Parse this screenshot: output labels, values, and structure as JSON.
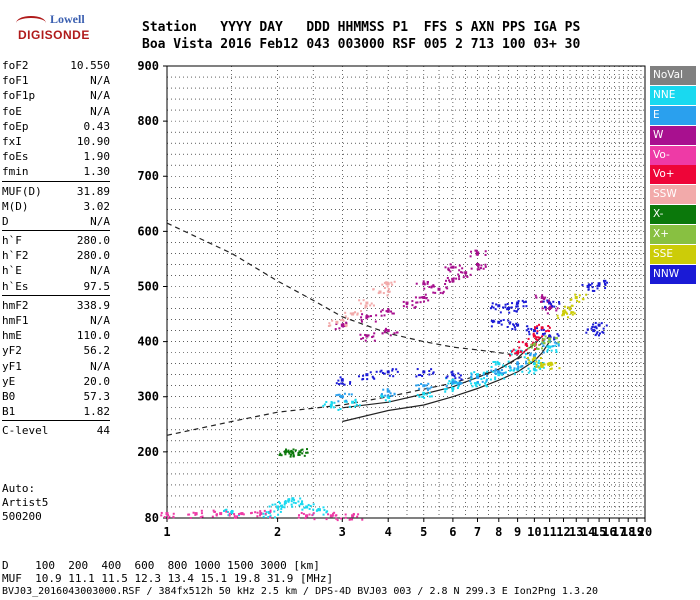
{
  "logo": {
    "line1": "Lowell",
    "line2": "DIGISONDE"
  },
  "header": {
    "labels": "Station   YYYY DAY   DDD HHMMSS P1  FFS S AXN PPS IGA PS",
    "values": "Boa Vista 2016 Feb12 043 003000 RSF 005 2 713 100 03+ 30"
  },
  "params": {
    "group1": [
      {
        "name": "foF2",
        "value": "10.550"
      },
      {
        "name": "foF1",
        "value": "N/A"
      },
      {
        "name": "foF1p",
        "value": "N/A"
      },
      {
        "name": "foE",
        "value": "N/A"
      },
      {
        "name": "foEp",
        "value": "0.43"
      },
      {
        "name": "fxI",
        "value": "10.90"
      },
      {
        "name": "foEs",
        "value": "1.90"
      },
      {
        "name": "fmin",
        "value": "1.30"
      }
    ],
    "group2": [
      {
        "name": "MUF(D)",
        "value": "31.89"
      },
      {
        "name": "M(D)",
        "value": "3.02"
      },
      {
        "name": "D",
        "value": "N/A"
      }
    ],
    "group3": [
      {
        "name": "h`F",
        "value": "280.0"
      },
      {
        "name": "h`F2",
        "value": "280.0"
      },
      {
        "name": "h`E",
        "value": "N/A"
      },
      {
        "name": "h`Es",
        "value": "97.5"
      }
    ],
    "group4": [
      {
        "name": "hmF2",
        "value": "338.9"
      },
      {
        "name": "hmF1",
        "value": "N/A"
      },
      {
        "name": "hmE",
        "value": "110.0"
      },
      {
        "name": "yF2",
        "value": "56.2"
      },
      {
        "name": "yF1",
        "value": "N/A"
      },
      {
        "name": "yE",
        "value": "20.0"
      },
      {
        "name": "B0",
        "value": "57.3"
      },
      {
        "name": "B1",
        "value": "1.82"
      }
    ],
    "group5": [
      {
        "name": "C-level",
        "value": "44"
      }
    ]
  },
  "auto": {
    "line1": "Auto:",
    "line2": "Artist5",
    "line3": "500200"
  },
  "footer": {
    "d_row": "D    100  200  400  600  800 1000 1500 3000 [km]",
    "muf_row": "MUF  10.9 11.1 11.5 12.3 13.4 15.1 19.8 31.9 [MHz]",
    "file_row": "BVJ03_2016043003000.RSF / 384fx512h 50 kHz 2.5 km / DPS-4D BVJ03 003 / 2.8 N 299.3 E Ion2Png 1.3.20"
  },
  "legend": [
    {
      "label": "NoVal",
      "color": "#808080"
    },
    {
      "label": "NNE",
      "color": "#19d9f0"
    },
    {
      "label": "E",
      "color": "#2aa0ee"
    },
    {
      "label": "W",
      "color": "#a8108f"
    },
    {
      "label": "Vo-",
      "color": "#ee3aa6"
    },
    {
      "label": "Vo+",
      "color": "#ee0538"
    },
    {
      "label": "SSW",
      "color": "#f2aaaa"
    },
    {
      "label": "X-",
      "color": "#0b780b"
    },
    {
      "label": "X+",
      "color": "#88c041"
    },
    {
      "label": "SSE",
      "color": "#cccc08"
    },
    {
      "label": "NNW",
      "color": "#1a1ad6"
    }
  ],
  "chart_data": {
    "type": "scatter",
    "xlim": [
      1,
      20
    ],
    "ylim": [
      80,
      900
    ],
    "x_ticks": [
      1,
      2,
      3,
      4,
      5,
      6,
      7,
      8,
      9,
      10,
      11,
      12,
      13,
      14,
      15,
      16,
      17,
      18,
      19,
      20
    ],
    "y_ticks": [
      80,
      200,
      300,
      400,
      500,
      600,
      700,
      800,
      900
    ],
    "x_log": true,
    "grid": true,
    "echo_clusters": [
      {
        "name": "W",
        "color": "#a8108f",
        "points": [
          [
            3,
            430
          ],
          [
            3.5,
            445
          ],
          [
            4,
            455
          ],
          [
            4.5,
            470
          ],
          [
            5,
            480
          ],
          [
            5.5,
            495
          ],
          [
            6,
            510
          ],
          [
            6.5,
            525
          ],
          [
            7,
            540
          ],
          [
            5,
            505
          ],
          [
            6,
            535
          ],
          [
            7,
            560
          ],
          [
            3.5,
            410
          ],
          [
            4,
            420
          ],
          [
            10.5,
            480
          ],
          [
            11,
            460
          ]
        ]
      },
      {
        "name": "NNE",
        "color": "#19d9f0",
        "points": [
          [
            2.8,
            285
          ],
          [
            3.2,
            290
          ],
          [
            4,
            300
          ],
          [
            5,
            305
          ],
          [
            6,
            315
          ],
          [
            7,
            325
          ],
          [
            8,
            340
          ],
          [
            9,
            350
          ],
          [
            10,
            360
          ],
          [
            11,
            390
          ],
          [
            8,
            360
          ],
          [
            9,
            380
          ],
          [
            6,
            330
          ],
          [
            7,
            340
          ],
          [
            10,
            350
          ]
        ]
      },
      {
        "name": "E",
        "color": "#2aa0ee",
        "points": [
          [
            3,
            300
          ],
          [
            4,
            310
          ],
          [
            5,
            320
          ],
          [
            6,
            325
          ],
          [
            7,
            335
          ],
          [
            8,
            345
          ],
          [
            9,
            360
          ],
          [
            10,
            375
          ],
          [
            11,
            400
          ]
        ]
      },
      {
        "name": "NNW",
        "color": "#1a1ad6",
        "points": [
          [
            3,
            330
          ],
          [
            3.5,
            340
          ],
          [
            4,
            345
          ],
          [
            5,
            345
          ],
          [
            6,
            340
          ],
          [
            8,
            465
          ],
          [
            8.5,
            460
          ],
          [
            9,
            470
          ],
          [
            10,
            420
          ],
          [
            11,
            470
          ],
          [
            11,
            410
          ],
          [
            14,
            500
          ],
          [
            15,
            505
          ],
          [
            14.5,
            420
          ],
          [
            15,
            430
          ],
          [
            9,
            430
          ],
          [
            8,
            435
          ]
        ]
      },
      {
        "name": "SSW",
        "color": "#f2aaaa",
        "points": [
          [
            2.9,
            435
          ],
          [
            3.2,
            450
          ],
          [
            3.5,
            470
          ],
          [
            3.8,
            490
          ],
          [
            4,
            505
          ]
        ]
      },
      {
        "name": "SSE",
        "color": "#cccc08",
        "points": [
          [
            10,
            370
          ],
          [
            10.5,
            355
          ],
          [
            11,
            360
          ],
          [
            12,
            450
          ],
          [
            12.5,
            460
          ],
          [
            13,
            480
          ]
        ]
      },
      {
        "name": "Vo+",
        "color": "#ee0538",
        "points": [
          [
            9,
            380
          ],
          [
            9.5,
            395
          ],
          [
            10,
            410
          ],
          [
            10.5,
            425
          ]
        ]
      },
      {
        "name": "X-",
        "color": "#0b780b",
        "points": [
          [
            2.1,
            200
          ],
          [
            2.2,
            198
          ],
          [
            2.3,
            200
          ]
        ]
      },
      {
        "name": "X+",
        "color": "#88c041",
        "points": [
          [
            10,
            395
          ],
          [
            11,
            405
          ]
        ]
      },
      {
        "name": "Es trace",
        "color": "#19d9f0",
        "points": [
          [
            1.9,
            90
          ],
          [
            2,
            100
          ],
          [
            2.1,
            108
          ],
          [
            2.2,
            115
          ],
          [
            2.4,
            100
          ],
          [
            2.6,
            95
          ],
          [
            1.5,
            90
          ]
        ]
      },
      {
        "name": "Es low",
        "color": "#ee3aa6",
        "points": [
          [
            1,
            88
          ],
          [
            1.2,
            88
          ],
          [
            1.4,
            88
          ],
          [
            1.6,
            88
          ],
          [
            1.8,
            88
          ],
          [
            2.4,
            84
          ],
          [
            2.8,
            84
          ],
          [
            3.2,
            84
          ]
        ]
      }
    ],
    "lines": [
      {
        "style": "dashed",
        "points": [
          [
            1,
            615
          ],
          [
            1.5,
            560
          ],
          [
            2,
            510
          ],
          [
            2.5,
            475
          ],
          [
            3,
            445
          ],
          [
            4,
            415
          ],
          [
            5,
            400
          ],
          [
            6,
            390
          ],
          [
            7,
            385
          ],
          [
            8,
            380
          ],
          [
            9,
            375
          ]
        ]
      },
      {
        "style": "dashed",
        "points": [
          [
            1,
            230
          ],
          [
            1.5,
            255
          ],
          [
            2,
            272
          ],
          [
            3,
            285
          ],
          [
            4,
            300
          ],
          [
            6,
            325
          ],
          [
            8,
            350
          ],
          [
            10,
            385
          ],
          [
            11,
            410
          ]
        ]
      },
      {
        "style": "solid",
        "points": [
          [
            3,
            255
          ],
          [
            4,
            275
          ],
          [
            5,
            285
          ],
          [
            6,
            300
          ],
          [
            7,
            315
          ],
          [
            8,
            330
          ],
          [
            9,
            345
          ],
          [
            10,
            365
          ],
          [
            10.5,
            380
          ],
          [
            11,
            400
          ]
        ]
      },
      {
        "style": "solid",
        "points": [
          [
            3,
            280
          ],
          [
            4,
            290
          ],
          [
            5,
            305
          ],
          [
            6,
            318
          ],
          [
            7,
            335
          ],
          [
            8,
            350
          ],
          [
            9,
            370
          ],
          [
            9.5,
            385
          ],
          [
            10,
            395
          ],
          [
            10.5,
            410
          ]
        ]
      }
    ]
  }
}
